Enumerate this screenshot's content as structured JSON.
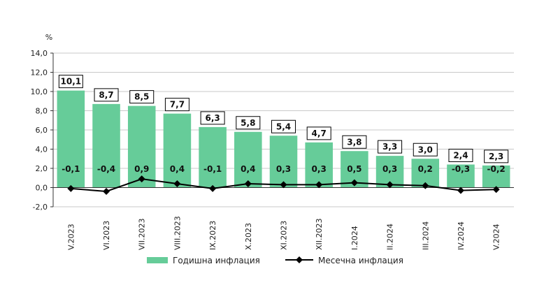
{
  "chart_data": {
    "type": "bar",
    "ylabel": "%",
    "ylim": [
      -2.0,
      14.0
    ],
    "ytick_step": 2.0,
    "yticks": [
      "-2,0",
      "0,0",
      "2,0",
      "4,0",
      "6,0",
      "8,0",
      "10,0",
      "12,0",
      "14,0"
    ],
    "categories": [
      "V.2023",
      "VI.2023",
      "VII.2023",
      "VIII.2023",
      "IX.2023",
      "X.2023",
      "XI.2023",
      "XII.2023",
      "I.2024",
      "II.2024",
      "III.2024",
      "IV.2024",
      "V.2024"
    ],
    "series": [
      {
        "name": "Годишна инфлация",
        "kind": "bar",
        "color": "#66CC99",
        "values": [
          10.1,
          8.7,
          8.5,
          7.7,
          6.3,
          5.8,
          5.4,
          4.7,
          3.8,
          3.3,
          3.0,
          2.4,
          2.3
        ],
        "labels": [
          "10,1",
          "8,7",
          "8,5",
          "7,7",
          "6,3",
          "5,8",
          "5,4",
          "4,7",
          "3,8",
          "3,3",
          "3,0",
          "2,4",
          "2,3"
        ]
      },
      {
        "name": "Месечна инфлация",
        "kind": "line",
        "color": "#000000",
        "values": [
          -0.1,
          -0.4,
          0.9,
          0.4,
          -0.1,
          0.4,
          0.3,
          0.3,
          0.5,
          0.3,
          0.2,
          -0.3,
          -0.2
        ],
        "labels": [
          "-0,1",
          "-0,4",
          "0,9",
          "0,4",
          "-0,1",
          "0,4",
          "0,3",
          "0,3",
          "0,5",
          "0,3",
          "0,2",
          "-0,3",
          "-0,2"
        ]
      }
    ],
    "legend": "bottom"
  }
}
